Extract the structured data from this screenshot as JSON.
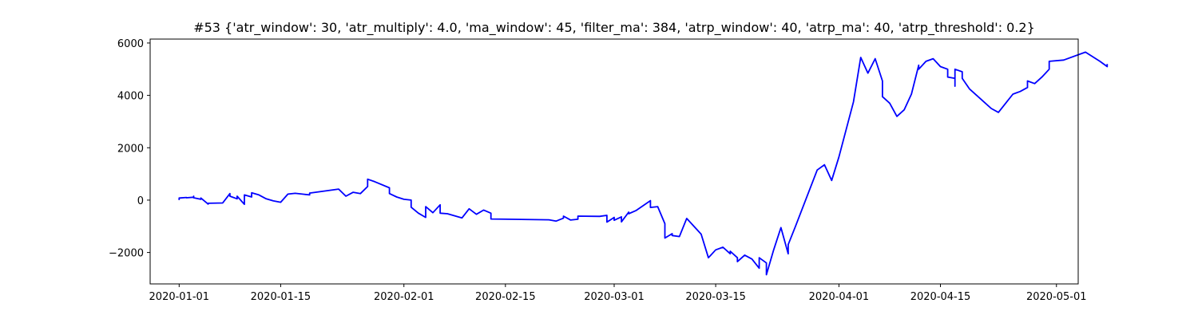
{
  "chart_data": {
    "type": "line",
    "title": "#53 {'atr_window': 30, 'atr_multiply': 4.0, 'ma_window': 45, 'filter_ma': 384, 'atrp_window': 40, 'atrp_ma': 40, 'atrp_threshold': 0.2}",
    "xlabel": "",
    "ylabel": "",
    "x_ticks": [
      "2020-01-01",
      "2020-01-15",
      "2020-02-01",
      "2020-02-15",
      "2020-03-01",
      "2020-03-15",
      "2020-04-01",
      "2020-04-15",
      "2020-05-01"
    ],
    "y_ticks": [
      "6000",
      "4000",
      "2000",
      "0",
      "−2000"
    ],
    "y_tick_values": [
      6000,
      4000,
      2000,
      0,
      -2000
    ],
    "xlim": [
      "2019-12-28",
      "2020-05-04"
    ],
    "ylim": [
      -3200,
      6150
    ],
    "grid": false,
    "series": [
      {
        "color": "#0000ff",
        "points": [
          [
            "2020-01-01",
            0
          ],
          [
            "2020-01-01",
            80
          ],
          [
            "2020-01-02",
            100
          ],
          [
            "2020-01-02",
            90
          ],
          [
            "2020-01-03",
            110
          ],
          [
            "2020-01-03",
            150
          ],
          [
            "2020-01-03",
            90
          ],
          [
            "2020-01-04",
            30
          ],
          [
            "2020-01-04",
            80
          ],
          [
            "2020-01-05",
            -150
          ],
          [
            "2020-01-05",
            -120
          ],
          [
            "2020-01-07",
            -110
          ],
          [
            "2020-01-08",
            250
          ],
          [
            "2020-01-08",
            150
          ],
          [
            "2020-01-09",
            50
          ],
          [
            "2020-01-09",
            150
          ],
          [
            "2020-01-10",
            -160
          ],
          [
            "2020-01-10",
            200
          ],
          [
            "2020-01-11",
            120
          ],
          [
            "2020-01-11",
            280
          ],
          [
            "2020-01-12",
            200
          ],
          [
            "2020-01-13",
            50
          ],
          [
            "2020-01-14",
            -30
          ],
          [
            "2020-01-15",
            -80
          ],
          [
            "2020-01-16",
            230
          ],
          [
            "2020-01-17",
            260
          ],
          [
            "2020-01-18",
            230
          ],
          [
            "2020-01-19",
            200
          ],
          [
            "2020-01-19",
            270
          ],
          [
            "2020-01-23",
            420
          ],
          [
            "2020-01-24",
            150
          ],
          [
            "2020-01-25",
            300
          ],
          [
            "2020-01-26",
            250
          ],
          [
            "2020-01-27",
            520
          ],
          [
            "2020-01-27",
            800
          ],
          [
            "2020-01-28",
            700
          ],
          [
            "2020-01-30",
            470
          ],
          [
            "2020-01-30",
            250
          ],
          [
            "2020-01-31",
            120
          ],
          [
            "2020-02-01",
            30
          ],
          [
            "2020-02-02",
            0
          ],
          [
            "2020-02-02",
            -120
          ],
          [
            "2020-02-02",
            -270
          ],
          [
            "2020-02-03",
            -500
          ],
          [
            "2020-02-04",
            -660
          ],
          [
            "2020-02-04",
            -250
          ],
          [
            "2020-02-05",
            -480
          ],
          [
            "2020-02-06",
            -180
          ],
          [
            "2020-02-06",
            -500
          ],
          [
            "2020-02-07",
            -520
          ],
          [
            "2020-02-09",
            -680
          ],
          [
            "2020-02-10",
            -330
          ],
          [
            "2020-02-11",
            -540
          ],
          [
            "2020-02-12",
            -380
          ],
          [
            "2020-02-13",
            -500
          ],
          [
            "2020-02-13",
            -720
          ],
          [
            "2020-02-21",
            -750
          ],
          [
            "2020-02-22",
            -800
          ],
          [
            "2020-02-23",
            -690
          ],
          [
            "2020-02-23",
            -610
          ],
          [
            "2020-02-24",
            -760
          ],
          [
            "2020-02-25",
            -730
          ],
          [
            "2020-02-25",
            -610
          ],
          [
            "2020-02-28",
            -620
          ],
          [
            "2020-02-29",
            -580
          ],
          [
            "2020-02-29",
            -840
          ],
          [
            "2020-03-01",
            -660
          ],
          [
            "2020-03-01",
            -770
          ],
          [
            "2020-03-02",
            -640
          ],
          [
            "2020-03-02",
            -830
          ],
          [
            "2020-03-03",
            -460
          ],
          [
            "2020-03-03",
            -520
          ],
          [
            "2020-03-04",
            -400
          ],
          [
            "2020-03-06",
            -20
          ],
          [
            "2020-03-06",
            -280
          ],
          [
            "2020-03-07",
            -250
          ],
          [
            "2020-03-08",
            -900
          ],
          [
            "2020-03-08",
            -1450
          ],
          [
            "2020-03-09",
            -1280
          ],
          [
            "2020-03-09",
            -1350
          ],
          [
            "2020-03-10",
            -1390
          ],
          [
            "2020-03-11",
            -700
          ],
          [
            "2020-03-13",
            -1300
          ],
          [
            "2020-03-14",
            -2200
          ],
          [
            "2020-03-15",
            -1900
          ],
          [
            "2020-03-16",
            -1800
          ],
          [
            "2020-03-17",
            -2050
          ],
          [
            "2020-03-17",
            -1950
          ],
          [
            "2020-03-18",
            -2200
          ],
          [
            "2020-03-18",
            -2350
          ],
          [
            "2020-03-19",
            -2100
          ],
          [
            "2020-03-20",
            -2250
          ],
          [
            "2020-03-21",
            -2600
          ],
          [
            "2020-03-21",
            -2200
          ],
          [
            "2020-03-22",
            -2400
          ],
          [
            "2020-03-22",
            -2850
          ],
          [
            "2020-03-23",
            -1900
          ],
          [
            "2020-03-24",
            -1050
          ],
          [
            "2020-03-25",
            -2050
          ],
          [
            "2020-03-25",
            -1700
          ],
          [
            "2020-03-26",
            -1000
          ],
          [
            "2020-03-29",
            1150
          ],
          [
            "2020-03-30",
            1350
          ],
          [
            "2020-03-31",
            750
          ],
          [
            "2020-04-01",
            1650
          ],
          [
            "2020-04-03",
            3750
          ],
          [
            "2020-04-04",
            5450
          ],
          [
            "2020-04-05",
            4850
          ],
          [
            "2020-04-06",
            5400
          ],
          [
            "2020-04-07",
            4550
          ],
          [
            "2020-04-07",
            3950
          ],
          [
            "2020-04-08",
            3700
          ],
          [
            "2020-04-09",
            3200
          ],
          [
            "2020-04-10",
            3450
          ],
          [
            "2020-04-11",
            4050
          ],
          [
            "2020-04-12",
            5150
          ],
          [
            "2020-04-12",
            5000
          ],
          [
            "2020-04-13",
            5300
          ],
          [
            "2020-04-14",
            5400
          ],
          [
            "2020-04-15",
            5100
          ],
          [
            "2020-04-16",
            5000
          ],
          [
            "2020-04-16",
            4700
          ],
          [
            "2020-04-17",
            4650
          ],
          [
            "2020-04-17",
            4350
          ],
          [
            "2020-04-17",
            5000
          ],
          [
            "2020-04-18",
            4900
          ],
          [
            "2020-04-18",
            4650
          ],
          [
            "2020-04-19",
            4250
          ],
          [
            "2020-04-21",
            3750
          ],
          [
            "2020-04-22",
            3500
          ],
          [
            "2020-04-23",
            3350
          ],
          [
            "2020-04-24",
            3700
          ],
          [
            "2020-04-25",
            4050
          ],
          [
            "2020-04-26",
            4150
          ],
          [
            "2020-04-27",
            4300
          ],
          [
            "2020-04-27",
            4550
          ],
          [
            "2020-04-28",
            4450
          ],
          [
            "2020-04-29",
            4700
          ],
          [
            "2020-04-30",
            5000
          ],
          [
            "2020-04-30",
            5300
          ],
          [
            "2020-05-02",
            5350
          ],
          [
            "2020-05-05",
            5650
          ],
          [
            "2020-05-07",
            5300
          ],
          [
            "2020-05-08",
            5100
          ],
          [
            "2020-05-08",
            5200
          ]
        ]
      }
    ]
  }
}
